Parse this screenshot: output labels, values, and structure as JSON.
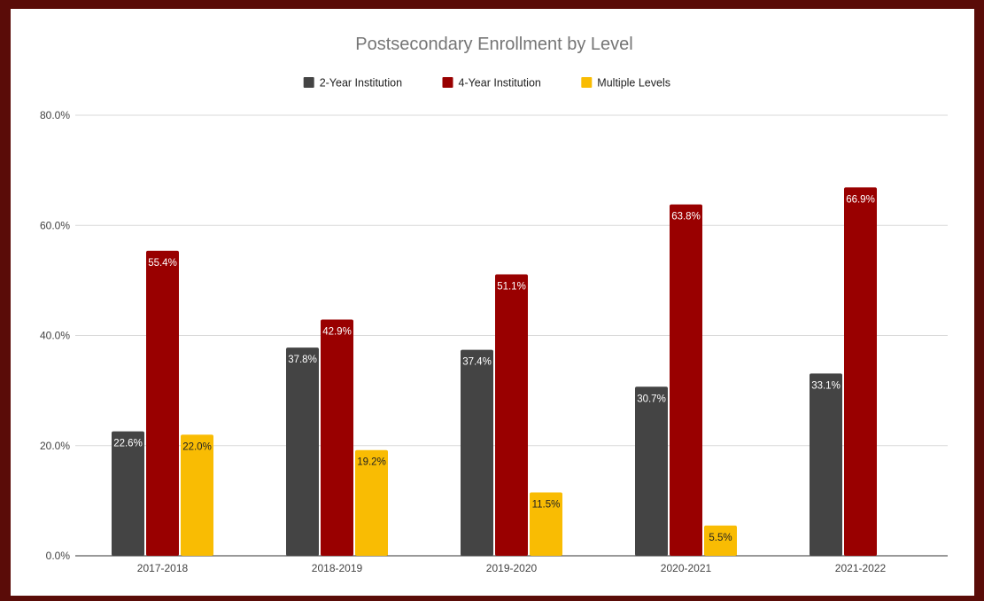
{
  "chart_data": {
    "type": "bar",
    "title": "Postsecondary Enrollment by Level",
    "categories": [
      "2017-2018",
      "2018-2019",
      "2019-2020",
      "2020-2021",
      "2021-2022"
    ],
    "series": [
      {
        "name": "2-Year Institution",
        "color": "#444444",
        "label_color": "#ffffff",
        "values": [
          22.6,
          37.8,
          37.4,
          30.7,
          33.1
        ],
        "labels": [
          "22.6%",
          "37.8%",
          "37.4%",
          "30.7%",
          "33.1%"
        ]
      },
      {
        "name": "4-Year Institution",
        "color": "#990000",
        "label_color": "#ffffff",
        "values": [
          55.4,
          42.9,
          51.1,
          63.8,
          66.9
        ],
        "labels": [
          "55.4%",
          "42.9%",
          "51.1%",
          "63.8%",
          "66.9%"
        ]
      },
      {
        "name": "Multiple Levels",
        "color": "#f9bc03",
        "label_color": "#222222",
        "values": [
          22.0,
          19.2,
          11.5,
          5.5,
          null
        ],
        "labels": [
          "22.0%",
          "19.2%",
          "11.5%",
          "5.5%",
          ""
        ]
      }
    ],
    "ylim": [
      0,
      80
    ],
    "yticks": [
      0,
      20,
      40,
      60,
      80
    ],
    "ytick_labels": [
      "0.0%",
      "20.0%",
      "40.0%",
      "60.0%",
      "80.0%"
    ],
    "grid": true,
    "legend_position": "top-center",
    "xlabel": "",
    "ylabel": ""
  }
}
